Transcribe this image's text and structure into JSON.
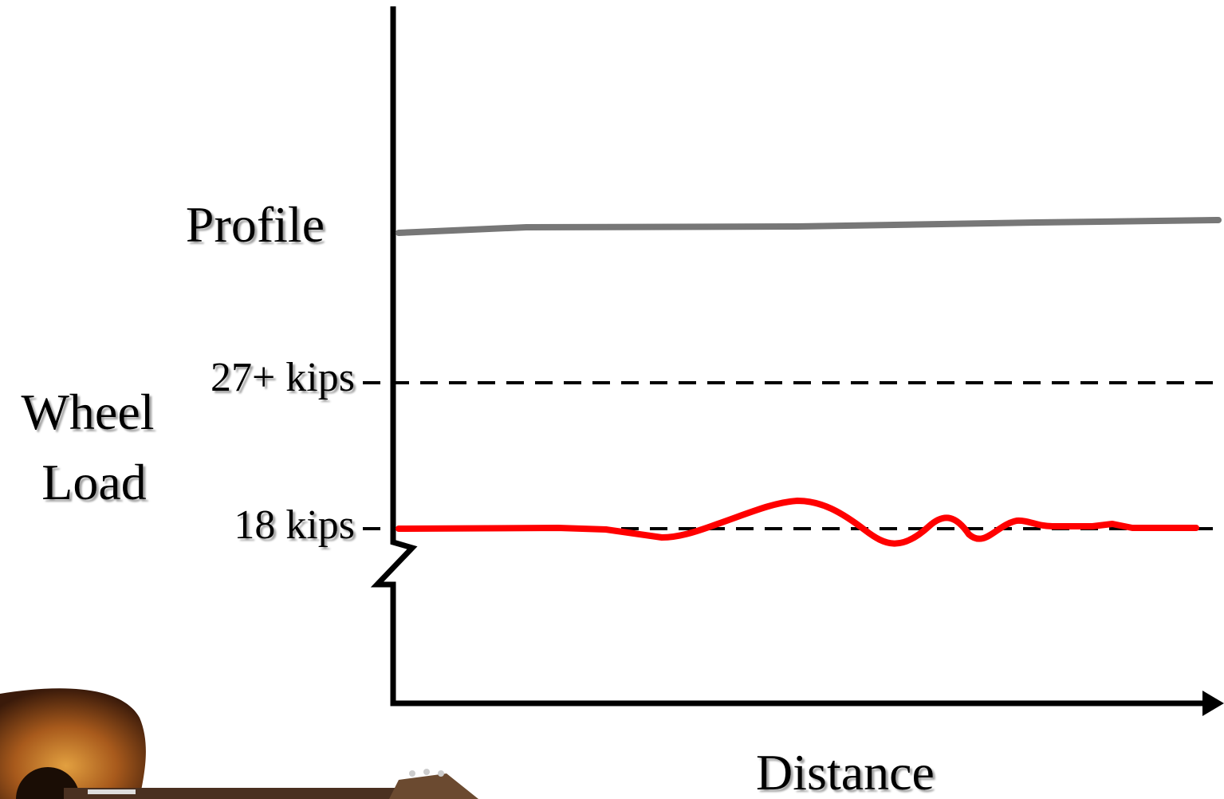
{
  "labels": {
    "profile": "Profile",
    "threshold_high": "27+ kips",
    "threshold_low": "18 kips",
    "y_axis": [
      "Wheel",
      "Load"
    ],
    "x_axis": "Distance"
  }
}
